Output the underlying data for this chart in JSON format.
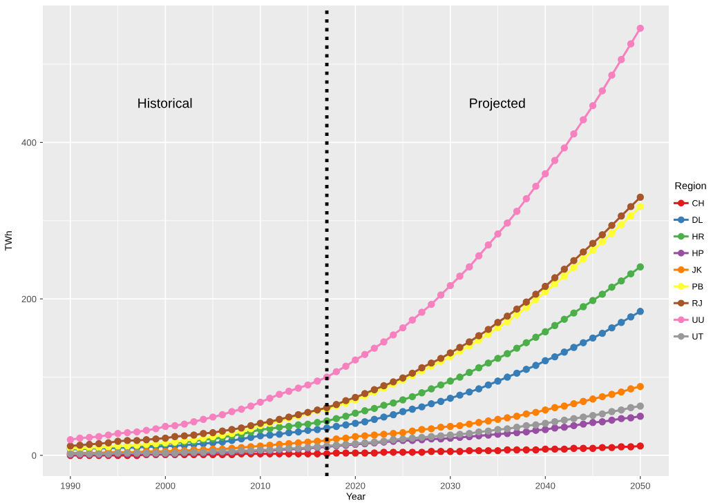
{
  "chart_data": {
    "type": "line",
    "xlabel": "Year",
    "ylabel": "TWh",
    "legend_title": "Region",
    "legend": "right",
    "grid": true,
    "marker": "circle",
    "line_style": "solid",
    "xlim": [
      1987.1,
      2053
    ],
    "ylim": [
      -26.5,
      575
    ],
    "xticks": [
      1990,
      2000,
      2010,
      2020,
      2030,
      2040,
      2050
    ],
    "yticks": [
      0,
      200,
      400
    ],
    "x": [
      1990,
      1991,
      1992,
      1993,
      1994,
      1995,
      1996,
      1997,
      1998,
      1999,
      2000,
      2001,
      2002,
      2003,
      2004,
      2005,
      2006,
      2007,
      2008,
      2009,
      2010,
      2011,
      2012,
      2013,
      2014,
      2015,
      2016,
      2017,
      2018,
      2019,
      2020,
      2021,
      2022,
      2023,
      2024,
      2025,
      2026,
      2027,
      2028,
      2029,
      2030,
      2031,
      2032,
      2033,
      2034,
      2035,
      2036,
      2037,
      2038,
      2039,
      2040,
      2041,
      2042,
      2043,
      2044,
      2045,
      2046,
      2047,
      2048,
      2049,
      2050
    ],
    "ref_lines": [
      {
        "axis": "x",
        "value": 2017,
        "color": "#000000",
        "line_style": "dotted"
      }
    ],
    "annotations": [
      "Historical",
      "Projected"
    ],
    "series": [
      {
        "name": "CH",
        "color": "#e41a1c",
        "values": [
          0,
          0,
          0,
          0,
          0,
          0,
          0,
          0,
          1,
          1,
          1,
          1,
          1,
          1,
          1,
          1,
          1,
          1,
          2,
          2,
          2,
          2,
          2,
          2,
          2,
          2,
          2,
          2,
          3,
          3,
          3,
          3,
          3,
          4,
          4,
          4,
          4,
          4,
          5,
          5,
          5,
          5,
          6,
          6,
          6,
          6,
          7,
          7,
          7,
          7,
          8,
          8,
          8,
          9,
          9,
          9,
          10,
          10,
          11,
          11,
          12
        ]
      },
      {
        "name": "DL",
        "color": "#377eb8",
        "values": [
          8,
          8,
          9,
          9,
          9,
          10,
          10,
          10,
          11,
          11,
          12,
          12,
          13,
          14,
          15,
          16,
          17,
          19,
          21,
          23,
          25,
          26,
          27,
          29,
          30,
          32,
          33,
          35,
          37,
          39,
          41,
          43,
          46,
          49,
          52,
          56,
          59,
          62,
          66,
          69,
          73,
          77,
          81,
          85,
          90,
          95,
          100,
          105,
          110,
          115,
          121,
          126,
          132,
          138,
          144,
          150,
          156,
          163,
          170,
          177,
          184
        ]
      },
      {
        "name": "HR",
        "color": "#4daf4a",
        "values": [
          9,
          9,
          10,
          10,
          11,
          11,
          12,
          12,
          13,
          14,
          15,
          16,
          17,
          18,
          20,
          21,
          23,
          25,
          27,
          30,
          33,
          34,
          36,
          37,
          39,
          40,
          42,
          44,
          47,
          50,
          54,
          57,
          60,
          64,
          67,
          71,
          75,
          80,
          85,
          90,
          95,
          100,
          106,
          112,
          118,
          124,
          130,
          137,
          144,
          151,
          158,
          166,
          174,
          182,
          190,
          198,
          206,
          215,
          223,
          232,
          241
        ]
      },
      {
        "name": "HP",
        "color": "#984ea3",
        "values": [
          1,
          1,
          1,
          1,
          1,
          2,
          2,
          2,
          2,
          2,
          2,
          2,
          3,
          3,
          3,
          4,
          4,
          4,
          5,
          5,
          6,
          6,
          7,
          8,
          8,
          9,
          10,
          11,
          12,
          13,
          14,
          15,
          16,
          17,
          18,
          19,
          19,
          20,
          21,
          21,
          22,
          23,
          24,
          25,
          26,
          27,
          28,
          29,
          30,
          32,
          33,
          35,
          36,
          38,
          40,
          42,
          43,
          45,
          47,
          48,
          50
        ]
      },
      {
        "name": "JK",
        "color": "#ff7f00",
        "values": [
          3,
          3,
          3,
          3,
          4,
          4,
          4,
          4,
          5,
          5,
          5,
          6,
          6,
          7,
          7,
          8,
          8,
          9,
          10,
          11,
          12,
          13,
          14,
          15,
          16,
          17,
          18,
          19,
          21,
          22,
          24,
          25,
          26,
          27,
          28,
          29,
          31,
          33,
          34,
          36,
          37,
          38,
          40,
          42,
          44,
          46,
          48,
          50,
          53,
          55,
          58,
          61,
          63,
          66,
          69,
          72,
          75,
          78,
          81,
          85,
          88
        ]
      },
      {
        "name": "PB",
        "color": "#ffff33",
        "values": [
          9,
          9,
          10,
          10,
          11,
          12,
          12,
          13,
          14,
          15,
          16,
          17,
          19,
          20,
          22,
          24,
          26,
          28,
          31,
          34,
          38,
          41,
          44,
          47,
          50,
          54,
          57,
          59,
          63,
          67,
          71,
          76,
          81,
          86,
          91,
          96,
          102,
          108,
          114,
          120,
          126,
          133,
          140,
          147,
          155,
          163,
          171,
          180,
          189,
          199,
          209,
          219,
          229,
          240,
          251,
          262,
          273,
          284,
          295,
          306,
          318
        ]
      },
      {
        "name": "RJ",
        "color": "#a65628",
        "values": [
          12,
          13,
          14,
          15,
          16,
          18,
          19,
          19,
          20,
          21,
          22,
          24,
          25,
          26,
          28,
          29,
          31,
          33,
          35,
          38,
          41,
          43,
          46,
          49,
          52,
          55,
          58,
          61,
          65,
          70,
          74,
          79,
          84,
          89,
          94,
          99,
          105,
          112,
          118,
          124,
          131,
          138,
          145,
          153,
          161,
          170,
          178,
          187,
          196,
          206,
          216,
          227,
          238,
          249,
          260,
          271,
          282,
          294,
          306,
          318,
          330
        ]
      },
      {
        "name": "UU",
        "color": "#f781bf",
        "values": [
          20,
          22,
          23,
          24,
          26,
          28,
          29,
          30,
          32,
          34,
          37,
          38,
          40,
          43,
          46,
          49,
          52,
          56,
          59,
          63,
          68,
          73,
          78,
          82,
          86,
          90,
          95,
          100,
          107,
          114,
          122,
          129,
          137,
          145,
          154,
          163,
          173,
          183,
          193,
          205,
          217,
          229,
          241,
          255,
          269,
          283,
          297,
          312,
          328,
          344,
          360,
          377,
          393,
          411,
          429,
          447,
          466,
          486,
          506,
          526,
          546
        ]
      },
      {
        "name": "UT",
        "color": "#999999",
        "values": [
          2,
          2,
          2,
          2,
          2,
          3,
          3,
          3,
          3,
          3,
          3,
          3,
          4,
          4,
          4,
          5,
          5,
          5,
          6,
          6,
          7,
          7,
          8,
          9,
          9,
          10,
          11,
          12,
          13,
          14,
          15,
          16,
          17,
          18,
          20,
          21,
          22,
          23,
          24,
          25,
          26,
          27,
          28,
          30,
          31,
          33,
          34,
          36,
          38,
          39,
          41,
          43,
          45,
          47,
          49,
          51,
          53,
          56,
          58,
          61,
          63
        ]
      }
    ]
  }
}
